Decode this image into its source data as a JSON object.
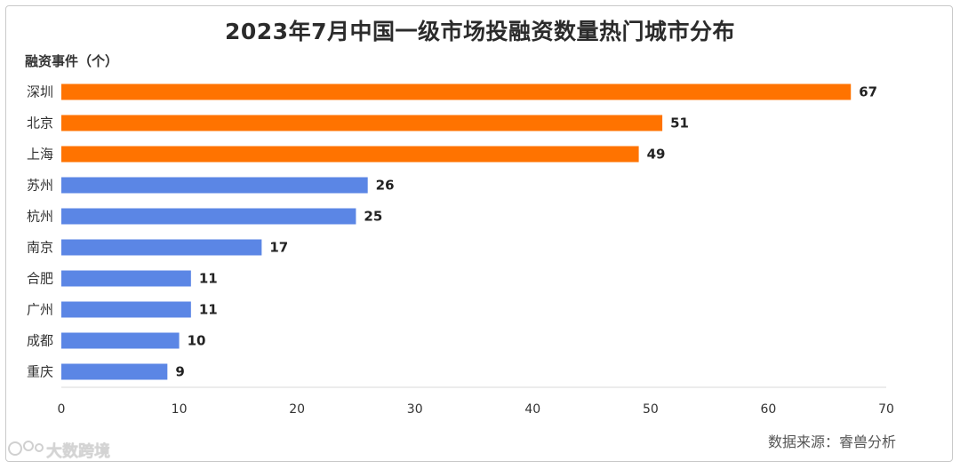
{
  "chart_data": {
    "type": "bar",
    "orientation": "horizontal",
    "title": "2023年7月中国一级市场投融资数量热门城市分布",
    "ylabel": "融资事件（个）",
    "categories": [
      "深圳",
      "北京",
      "上海",
      "苏州",
      "杭州",
      "南京",
      "合肥",
      "广州",
      "成都",
      "重庆"
    ],
    "values": [
      67,
      51,
      49,
      26,
      25,
      17,
      11,
      11,
      10,
      9
    ],
    "bar_colors": [
      "#ff7300",
      "#ff7300",
      "#ff7300",
      "#5b86e5",
      "#5b86e5",
      "#5b86e5",
      "#5b86e5",
      "#5b86e5",
      "#5b86e5",
      "#5b86e5"
    ],
    "xlim": [
      0,
      70
    ],
    "xticks": [
      0,
      10,
      20,
      30,
      40,
      50,
      60,
      70
    ],
    "grid": false,
    "source": "数据来源：睿兽分析"
  },
  "watermark": "大数跨境"
}
